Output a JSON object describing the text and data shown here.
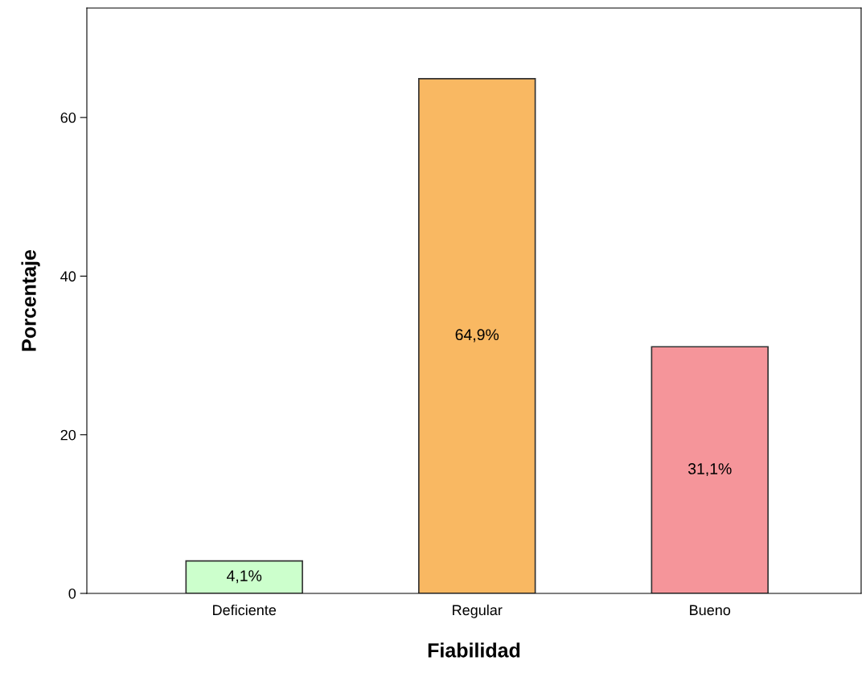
{
  "chart_data": {
    "type": "bar",
    "xlabel": "Fiabilidad",
    "ylabel": "Porcentaje",
    "categories": [
      "Deficiente",
      "Regular",
      "Bueno"
    ],
    "values": [
      4.1,
      64.9,
      31.1
    ],
    "colors": [
      "#ccffcc",
      "#f9b862",
      "#f5959a"
    ],
    "value_labels": [
      "4,1%",
      "64,9%",
      "31,1%"
    ],
    "ylim": [
      0,
      73.8
    ],
    "yticks": [
      0,
      20,
      40,
      60
    ],
    "grid": false,
    "legend": false
  }
}
